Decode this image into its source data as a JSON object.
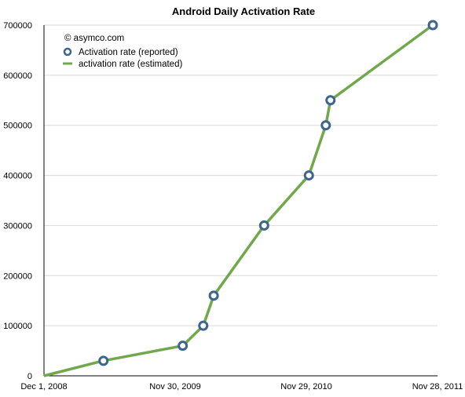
{
  "chart_data": {
    "type": "line",
    "title": "Android Daily Activation Rate",
    "annotation": "© asymco.com",
    "x_tick_labels": [
      "Dec 1, 2008",
      "Nov 30, 2009",
      "Nov 29, 2010",
      "Nov 28, 2011"
    ],
    "x_range": [
      "2008-12-01",
      "2011-11-28"
    ],
    "ylim": [
      0,
      700000
    ],
    "y_ticks": [
      0,
      100000,
      200000,
      300000,
      400000,
      500000,
      600000,
      700000
    ],
    "y_tick_labels": [
      "0",
      "100000",
      "200000",
      "300000",
      "400000",
      "500000",
      "600000",
      "700000"
    ],
    "grid": true,
    "legend_position": "top-left",
    "series": [
      {
        "name": "Activation rate (reported)",
        "style": "markers",
        "color": "#3d6491",
        "points": [
          {
            "x": "2009-05-15",
            "y": 30000
          },
          {
            "x": "2009-12-21",
            "y": 60000
          },
          {
            "x": "2010-02-16",
            "y": 100000
          },
          {
            "x": "2010-03-17",
            "y": 160000
          },
          {
            "x": "2010-08-04",
            "y": 300000
          },
          {
            "x": "2010-12-06",
            "y": 400000
          },
          {
            "x": "2011-01-22",
            "y": 500000
          },
          {
            "x": "2011-02-04",
            "y": 550000
          },
          {
            "x": "2011-11-15",
            "y": 700000
          }
        ]
      },
      {
        "name": "activation rate (estimated)",
        "style": "line",
        "color": "#72a84c",
        "points": [
          {
            "x": "2008-12-01",
            "y": 0
          },
          {
            "x": "2009-05-15",
            "y": 30000
          },
          {
            "x": "2009-12-21",
            "y": 60000
          },
          {
            "x": "2010-02-16",
            "y": 100000
          },
          {
            "x": "2010-03-17",
            "y": 160000
          },
          {
            "x": "2010-08-04",
            "y": 300000
          },
          {
            "x": "2010-12-06",
            "y": 400000
          },
          {
            "x": "2011-01-22",
            "y": 500000
          },
          {
            "x": "2011-02-04",
            "y": 550000
          },
          {
            "x": "2011-11-15",
            "y": 700000
          }
        ]
      }
    ]
  }
}
